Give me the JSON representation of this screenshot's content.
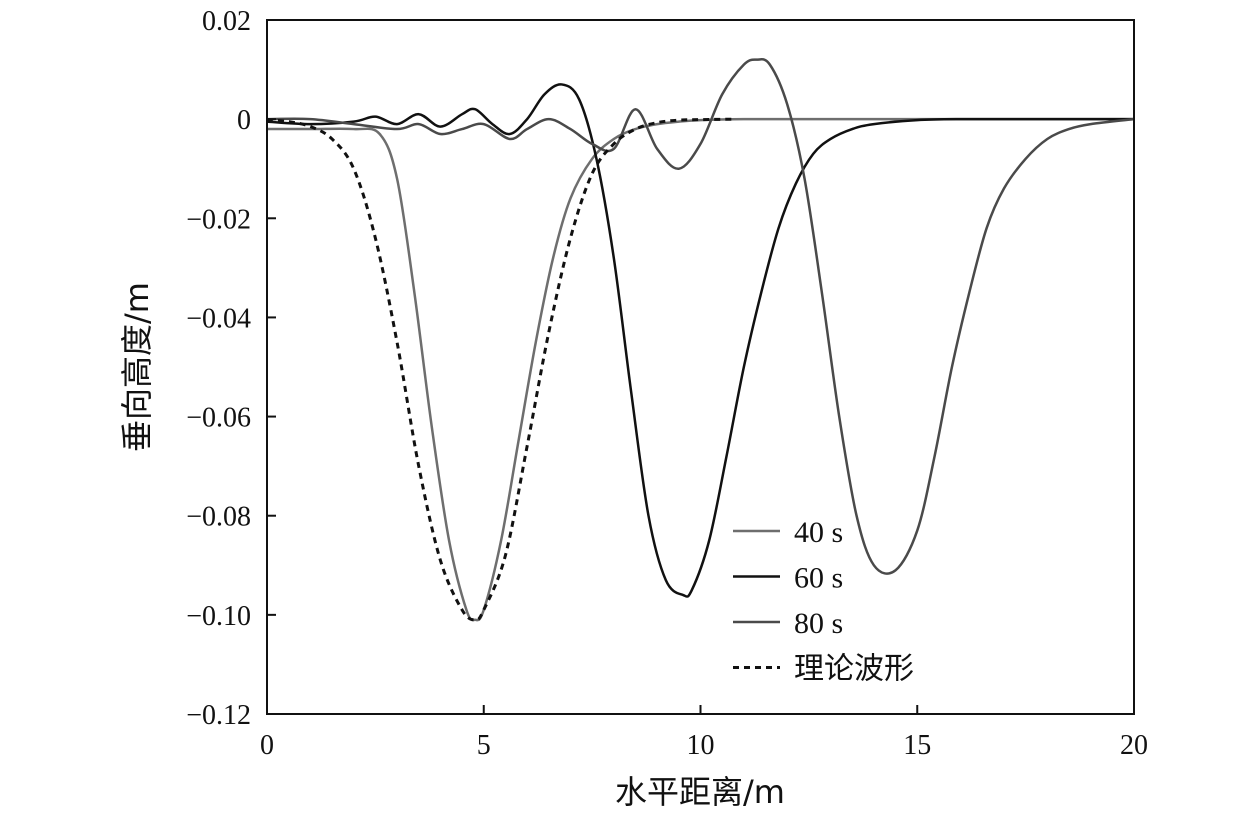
{
  "chart_data": {
    "type": "line",
    "title": "",
    "xlabel": "水平距离/m",
    "ylabel": "垂向高度/m",
    "xlim": [
      0,
      20
    ],
    "ylim": [
      -0.12,
      0.02
    ],
    "xticks": [
      0,
      5,
      10,
      15,
      20
    ],
    "xtick_labels": [
      "0",
      "5",
      "10",
      "15",
      "20"
    ],
    "yticks": [
      0.02,
      0,
      -0.02,
      -0.04,
      -0.06,
      -0.08,
      -0.1,
      -0.12
    ],
    "ytick_labels": [
      "0.02",
      "0",
      "−0.02",
      "−0.04",
      "−0.06",
      "−0.08",
      "−0.10",
      "−0.12"
    ],
    "grid": false,
    "legend_position": "bottom-center",
    "series": [
      {
        "name": "40 s",
        "color": "#6e6e6e",
        "style": "solid",
        "x": [
          0,
          1,
          2,
          2.6,
          3.0,
          3.4,
          3.8,
          4.2,
          4.6,
          4.8,
          5.0,
          5.4,
          5.8,
          6.2,
          6.6,
          7.0,
          7.5,
          8.0,
          8.5,
          9.0,
          9.5,
          10.0,
          11,
          12,
          14,
          16,
          18,
          20
        ],
        "y": [
          -0.002,
          -0.002,
          -0.002,
          -0.003,
          -0.012,
          -0.035,
          -0.062,
          -0.085,
          -0.099,
          -0.101,
          -0.099,
          -0.085,
          -0.065,
          -0.045,
          -0.028,
          -0.016,
          -0.008,
          -0.004,
          -0.002,
          -0.001,
          -0.0005,
          -0.0002,
          0,
          0,
          0,
          0,
          0,
          0
        ]
      },
      {
        "name": "60 s",
        "color": "#111111",
        "style": "solid",
        "x": [
          0,
          1,
          2,
          2.5,
          3,
          3.5,
          4,
          4.5,
          4.8,
          5.2,
          5.6,
          6.0,
          6.4,
          6.8,
          7.2,
          7.6,
          8.0,
          8.4,
          8.8,
          9.2,
          9.6,
          9.8,
          10.2,
          10.6,
          11.0,
          11.4,
          11.8,
          12.2,
          12.6,
          13.0,
          13.5,
          14.0,
          15.0,
          16.0,
          18.0,
          20.0
        ],
        "y": [
          -0.0005,
          -0.001,
          -0.0005,
          0.0005,
          -0.001,
          0.001,
          -0.0015,
          0.001,
          0.002,
          -0.001,
          -0.003,
          0.0,
          0.005,
          0.007,
          0.004,
          -0.008,
          -0.028,
          -0.055,
          -0.08,
          -0.093,
          -0.096,
          -0.095,
          -0.085,
          -0.068,
          -0.05,
          -0.035,
          -0.022,
          -0.013,
          -0.007,
          -0.004,
          -0.002,
          -0.001,
          -0.0002,
          0,
          0,
          0
        ]
      },
      {
        "name": "80 s",
        "color": "#4a4a4a",
        "style": "solid",
        "x": [
          0,
          1,
          2,
          3,
          3.5,
          4,
          4.5,
          5.0,
          5.6,
          6.0,
          6.5,
          7.0,
          7.5,
          8.0,
          8.5,
          9.0,
          9.5,
          10.0,
          10.5,
          11.0,
          11.3,
          11.6,
          12.0,
          12.4,
          12.8,
          13.2,
          13.6,
          14.0,
          14.5,
          15.0,
          15.4,
          15.8,
          16.2,
          16.6,
          17.0,
          17.5,
          18.0,
          18.5,
          19.0,
          20.0
        ],
        "y": [
          0,
          0,
          -0.001,
          -0.002,
          -0.001,
          -0.003,
          -0.002,
          -0.001,
          -0.004,
          -0.002,
          0.0,
          -0.002,
          -0.005,
          -0.006,
          0.002,
          -0.006,
          -0.01,
          -0.005,
          0.005,
          0.011,
          0.012,
          0.011,
          0.003,
          -0.012,
          -0.035,
          -0.06,
          -0.08,
          -0.09,
          -0.091,
          -0.083,
          -0.068,
          -0.05,
          -0.035,
          -0.022,
          -0.014,
          -0.008,
          -0.004,
          -0.002,
          -0.001,
          0
        ]
      },
      {
        "name": "理论波形",
        "color": "#111111",
        "style": "dotted",
        "x": [
          0,
          0.5,
          1.0,
          1.5,
          2.0,
          2.5,
          3.0,
          3.5,
          4.0,
          4.5,
          4.8,
          5.0,
          5.5,
          6.0,
          6.5,
          7.0,
          7.5,
          8.0,
          8.5,
          9.0,
          9.5,
          10.0,
          10.8
        ],
        "y": [
          -0.0001,
          -0.0005,
          -0.0015,
          -0.004,
          -0.01,
          -0.024,
          -0.045,
          -0.07,
          -0.089,
          -0.099,
          -0.101,
          -0.099,
          -0.088,
          -0.066,
          -0.043,
          -0.024,
          -0.011,
          -0.005,
          -0.002,
          -0.0007,
          -0.0002,
          -0.0001,
          0
        ]
      }
    ]
  }
}
